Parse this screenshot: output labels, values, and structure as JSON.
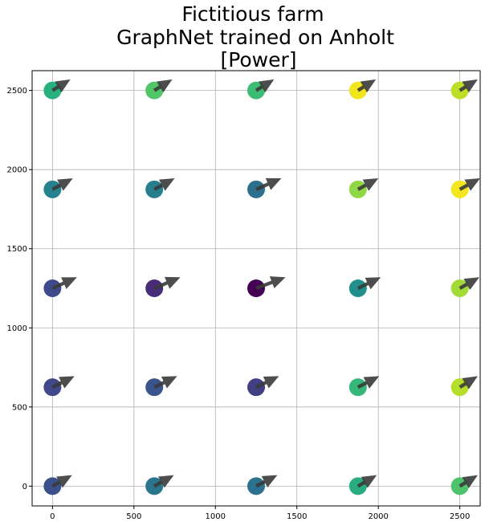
{
  "chart_data": {
    "type": "scatter",
    "title_lines": [
      "Fictitious farm",
      "GraphNet trained on Anholt",
      "[Power]"
    ],
    "xlabel": "",
    "ylabel": "",
    "xlim": [
      -125,
      2625
    ],
    "ylim": [
      -125,
      2625
    ],
    "xticks": [
      0,
      500,
      1000,
      1500,
      2000,
      2500
    ],
    "yticks": [
      0,
      500,
      1000,
      1500,
      2000,
      2500
    ],
    "grid": true,
    "colormap": "viridis",
    "arrow_color": "#3a3a3a",
    "points": [
      {
        "x": 0,
        "y": 2500,
        "power": 0.62,
        "arrow_dx": 110,
        "arrow_dy": 70,
        "color": "#2ab07f"
      },
      {
        "x": 625,
        "y": 2500,
        "power": 0.72,
        "arrow_dx": 110,
        "arrow_dy": 70,
        "color": "#52c569"
      },
      {
        "x": 1250,
        "y": 2500,
        "power": 0.66,
        "arrow_dx": 110,
        "arrow_dy": 70,
        "color": "#3dbc74"
      },
      {
        "x": 1875,
        "y": 2500,
        "power": 0.99,
        "arrow_dx": 110,
        "arrow_dy": 70,
        "color": "#f1e51d"
      },
      {
        "x": 2500,
        "y": 2500,
        "power": 0.86,
        "arrow_dx": 110,
        "arrow_dy": 70,
        "color": "#bddf26"
      },
      {
        "x": 0,
        "y": 1875,
        "power": 0.45,
        "arrow_dx": 125,
        "arrow_dy": 70,
        "color": "#26828e"
      },
      {
        "x": 625,
        "y": 1875,
        "power": 0.43,
        "arrow_dx": 125,
        "arrow_dy": 70,
        "color": "#277f8e"
      },
      {
        "x": 1250,
        "y": 1875,
        "power": 0.33,
        "arrow_dx": 155,
        "arrow_dy": 70,
        "color": "#2d708e"
      },
      {
        "x": 1875,
        "y": 1875,
        "power": 0.8,
        "arrow_dx": 125,
        "arrow_dy": 70,
        "color": "#8fd744"
      },
      {
        "x": 2500,
        "y": 1875,
        "power": 0.98,
        "arrow_dx": 125,
        "arrow_dy": 70,
        "color": "#f4e61e"
      },
      {
        "x": 0,
        "y": 1250,
        "power": 0.22,
        "arrow_dx": 150,
        "arrow_dy": 70,
        "color": "#3e4a89"
      },
      {
        "x": 625,
        "y": 1250,
        "power": 0.08,
        "arrow_dx": 160,
        "arrow_dy": 70,
        "color": "#472c7a"
      },
      {
        "x": 1250,
        "y": 1250,
        "power": 0.0,
        "arrow_dx": 180,
        "arrow_dy": 70,
        "color": "#440154"
      },
      {
        "x": 1875,
        "y": 1250,
        "power": 0.48,
        "arrow_dx": 140,
        "arrow_dy": 70,
        "color": "#21908d"
      },
      {
        "x": 2500,
        "y": 1250,
        "power": 0.82,
        "arrow_dx": 120,
        "arrow_dy": 70,
        "color": "#a2da37"
      },
      {
        "x": 0,
        "y": 625,
        "power": 0.22,
        "arrow_dx": 135,
        "arrow_dy": 70,
        "color": "#3f4889"
      },
      {
        "x": 625,
        "y": 625,
        "power": 0.27,
        "arrow_dx": 140,
        "arrow_dy": 70,
        "color": "#39558c"
      },
      {
        "x": 1250,
        "y": 625,
        "power": 0.18,
        "arrow_dx": 140,
        "arrow_dy": 70,
        "color": "#423f85"
      },
      {
        "x": 1875,
        "y": 625,
        "power": 0.64,
        "arrow_dx": 130,
        "arrow_dy": 70,
        "color": "#35b779"
      },
      {
        "x": 2500,
        "y": 625,
        "power": 0.86,
        "arrow_dx": 110,
        "arrow_dy": 70,
        "color": "#b5de2b"
      },
      {
        "x": 0,
        "y": 0,
        "power": 0.24,
        "arrow_dx": 120,
        "arrow_dy": 70,
        "color": "#3b518b"
      },
      {
        "x": 625,
        "y": 0,
        "power": 0.38,
        "arrow_dx": 120,
        "arrow_dy": 70,
        "color": "#2b748e"
      },
      {
        "x": 1250,
        "y": 0,
        "power": 0.37,
        "arrow_dx": 130,
        "arrow_dy": 70,
        "color": "#2c728e"
      },
      {
        "x": 1875,
        "y": 0,
        "power": 0.62,
        "arrow_dx": 115,
        "arrow_dy": 70,
        "color": "#27ad81"
      },
      {
        "x": 2500,
        "y": 0,
        "power": 0.72,
        "arrow_dx": 110,
        "arrow_dy": 70,
        "color": "#4ec36b"
      }
    ]
  }
}
